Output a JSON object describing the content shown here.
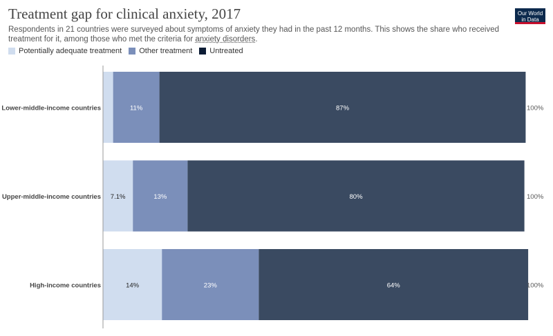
{
  "header": {
    "title": "Treatment gap for clinical anxiety, 2017",
    "subtitle_before": "Respondents in 21 countries were surveyed about symptoms of anxiety they had in the past 12 months. This shows the share who received treatment for it, among those who met the criteria for ",
    "subtitle_link": "anxiety disorders",
    "subtitle_after": "."
  },
  "logo": {
    "line1": "Our World",
    "line2": "in Data"
  },
  "colors": {
    "adequate": "#d0ddef",
    "other": "#7b8fba",
    "untreated": "#3a4a61"
  },
  "chart_data": {
    "type": "bar",
    "orientation": "horizontal",
    "stacked": true,
    "xlim": [
      0,
      100
    ],
    "categories": [
      "Lower-middle-income countries",
      "Upper-middle-income countries",
      "High-income countries"
    ],
    "series": [
      {
        "name": "Potentially adequate treatment",
        "values": [
          2.4,
          7.1,
          14
        ],
        "labels": [
          "",
          "7.1%",
          "14%"
        ]
      },
      {
        "name": "Other treatment",
        "values": [
          11,
          13,
          23
        ],
        "labels": [
          "11%",
          "13%",
          "23%"
        ]
      },
      {
        "name": "Untreated",
        "values": [
          87,
          80,
          64
        ],
        "labels": [
          "87%",
          "80%",
          "64%"
        ]
      }
    ],
    "totals": [
      "100%",
      "100%",
      "100%"
    ],
    "legend_position": "top-left"
  }
}
